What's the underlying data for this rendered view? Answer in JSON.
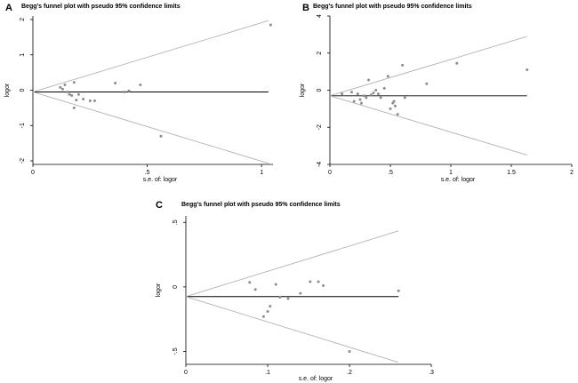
{
  "chart_data": [
    {
      "panel": "A",
      "type": "scatter",
      "title": "Begg's funnel plot with pseudo 95% confidence limits",
      "xlabel": "s.e. of: logor",
      "ylabel": "logor",
      "xlim": [
        0,
        1.05
      ],
      "ylim": [
        -2.1,
        2.1
      ],
      "xticks": [
        {
          "v": 0,
          "label": "0"
        },
        {
          "v": 0.5,
          "label": ".5"
        },
        {
          "v": 1,
          "label": "1"
        }
      ],
      "yticks": [
        {
          "v": -2,
          "label": "-2"
        },
        {
          "v": -1,
          "label": "-1"
        },
        {
          "v": 0,
          "label": "0"
        },
        {
          "v": 1,
          "label": "1"
        },
        {
          "v": 2,
          "label": "2"
        }
      ],
      "pooled": -0.05,
      "funnel_xmax": 1.03,
      "points": [
        [
          0.12,
          0.08
        ],
        [
          0.13,
          0.03
        ],
        [
          0.14,
          0.15
        ],
        [
          0.15,
          -0.05
        ],
        [
          0.16,
          -0.12
        ],
        [
          0.17,
          -0.15
        ],
        [
          0.18,
          0.22
        ],
        [
          0.18,
          -0.5
        ],
        [
          0.19,
          -0.28
        ],
        [
          0.2,
          -0.12
        ],
        [
          0.22,
          -0.25
        ],
        [
          0.25,
          -0.3
        ],
        [
          0.27,
          -0.3
        ],
        [
          0.36,
          0.2
        ],
        [
          0.4,
          -0.05
        ],
        [
          0.42,
          -0.02
        ],
        [
          0.47,
          0.15
        ],
        [
          0.56,
          -1.3
        ],
        [
          1.04,
          1.85
        ]
      ]
    },
    {
      "panel": "B",
      "type": "scatter",
      "title": "Begg's funnel plot with pseudo 95% confidence limits",
      "xlabel": "s.e. of: logor",
      "ylabel": "logor",
      "xlim": [
        0,
        2
      ],
      "ylim": [
        -4,
        4
      ],
      "xticks": [
        {
          "v": 0,
          "label": "0"
        },
        {
          "v": 0.5,
          "label": ".5"
        },
        {
          "v": 1,
          "label": "1"
        },
        {
          "v": 1.5,
          "label": "1.5"
        },
        {
          "v": 2,
          "label": "2"
        }
      ],
      "yticks": [
        {
          "v": -4,
          "label": "-4"
        },
        {
          "v": -2,
          "label": "-2"
        },
        {
          "v": 0,
          "label": "0"
        },
        {
          "v": 2,
          "label": "2"
        },
        {
          "v": 4,
          "label": "4"
        }
      ],
      "pooled": -0.3,
      "funnel_xmax": 1.63,
      "points": [
        [
          0.1,
          -0.2
        ],
        [
          0.18,
          -0.1
        ],
        [
          0.2,
          -0.6
        ],
        [
          0.23,
          -0.2
        ],
        [
          0.25,
          -0.5
        ],
        [
          0.26,
          -0.7
        ],
        [
          0.28,
          -0.3
        ],
        [
          0.3,
          -0.4
        ],
        [
          0.32,
          0.55
        ],
        [
          0.34,
          -0.25
        ],
        [
          0.36,
          -0.15
        ],
        [
          0.38,
          0.0
        ],
        [
          0.4,
          -0.2
        ],
        [
          0.42,
          -0.4
        ],
        [
          0.45,
          0.1
        ],
        [
          0.48,
          0.75
        ],
        [
          0.5,
          -1.0
        ],
        [
          0.52,
          -0.7
        ],
        [
          0.53,
          -0.6
        ],
        [
          0.54,
          -0.85
        ],
        [
          0.56,
          -1.3
        ],
        [
          0.6,
          1.35
        ],
        [
          0.62,
          -0.4
        ],
        [
          0.8,
          0.35
        ],
        [
          1.05,
          1.45
        ],
        [
          1.63,
          1.1
        ]
      ]
    },
    {
      "panel": "C",
      "type": "scatter",
      "title": "Begg's funnel plot with pseudo 95% confidence limits",
      "xlabel": "s.e. of: logor",
      "ylabel": "logor",
      "xlim": [
        0,
        0.3
      ],
      "ylim": [
        -0.6,
        0.55
      ],
      "xticks": [
        {
          "v": 0,
          "label": "0"
        },
        {
          "v": 0.1,
          "label": ".1"
        },
        {
          "v": 0.2,
          "label": ".2"
        },
        {
          "v": 0.3,
          "label": ".3"
        }
      ],
      "yticks": [
        {
          "v": -0.5,
          "label": "-.5"
        },
        {
          "v": 0,
          "label": "0"
        },
        {
          "v": 0.5,
          "label": ".5"
        }
      ],
      "pooled": -0.075,
      "funnel_xmax": 0.26,
      "points": [
        [
          0.078,
          0.035
        ],
        [
          0.085,
          -0.02
        ],
        [
          0.095,
          -0.23
        ],
        [
          0.1,
          -0.19
        ],
        [
          0.103,
          -0.15
        ],
        [
          0.11,
          0.02
        ],
        [
          0.115,
          -0.08
        ],
        [
          0.125,
          -0.09
        ],
        [
          0.14,
          -0.05
        ],
        [
          0.152,
          0.04
        ],
        [
          0.162,
          0.04
        ],
        [
          0.168,
          0.01
        ],
        [
          0.2,
          -0.5
        ],
        [
          0.26,
          -0.03
        ]
      ]
    }
  ]
}
